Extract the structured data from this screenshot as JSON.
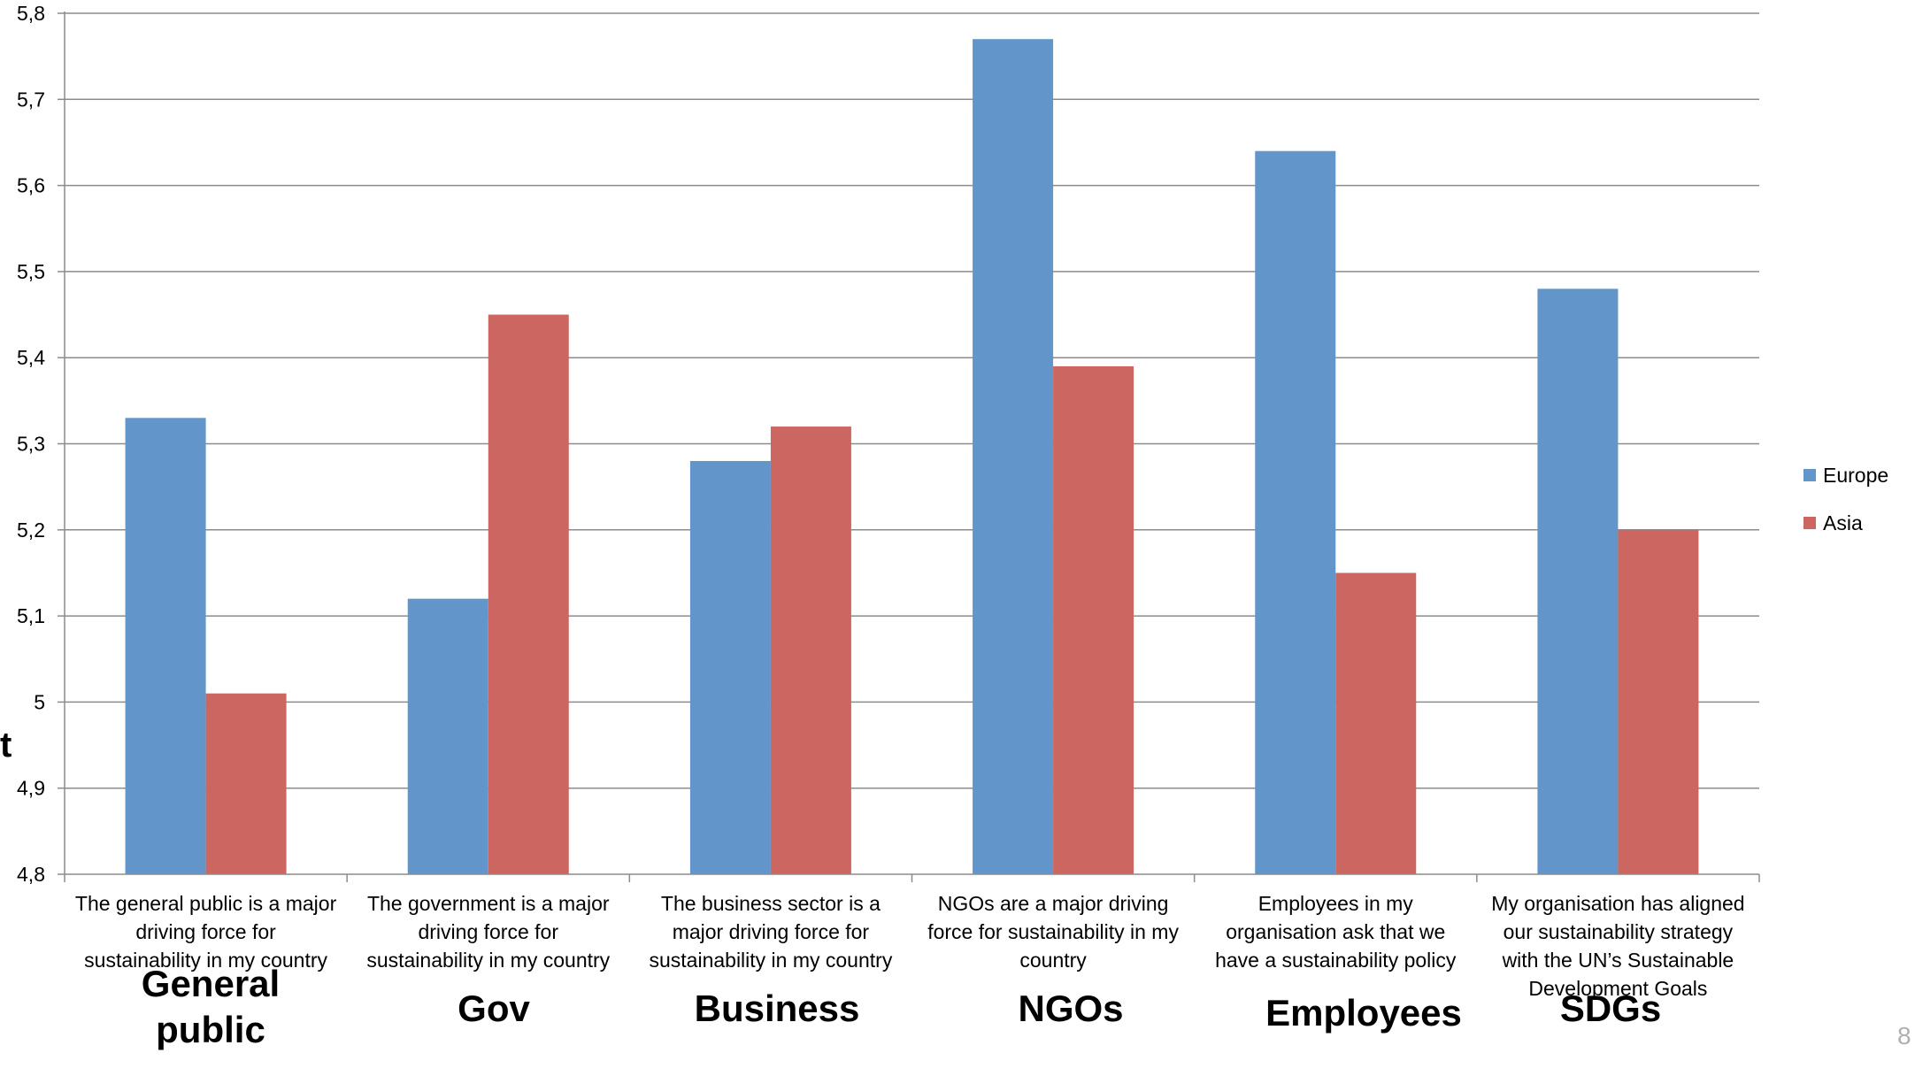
{
  "chart_data": {
    "type": "bar",
    "categories": [
      "The general public is a major\ndriving force for\nsustainability in my country",
      "The government is a major\ndriving force for\nsustainability in  my country",
      "The business sector is a\nmajor driving force for\nsustainability in my country",
      "NGOs are a major driving\nforce for sustainability in my\ncountry",
      "Employees in my\norganisation ask that we\nhave a sustainability policy",
      "My organisation has aligned\nour sustainability strategy\nwith the UN’s Sustainable\nDevelopment Goals"
    ],
    "group_labels": [
      "General\npublic",
      "Gov",
      "Business",
      "NGOs",
      "Employees",
      "SDGs"
    ],
    "series": [
      {
        "name": "Europe",
        "color": "#6295C9",
        "values": [
          5.33,
          5.12,
          5.28,
          5.77,
          5.64,
          5.48
        ]
      },
      {
        "name": "Asia",
        "color": "#CC6660",
        "values": [
          5.01,
          5.45,
          5.32,
          5.39,
          5.15,
          5.2
        ]
      }
    ],
    "yticks": [
      "4,8",
      "4,9",
      "5",
      "5,1",
      "5,2",
      "5,3",
      "5,4",
      "5,5",
      "5,6",
      "5,7",
      "5,8"
    ],
    "ylim": [
      4.8,
      5.8
    ],
    "grid": true,
    "legend_position": "right"
  },
  "edge_glyph": "t",
  "page_number": "8"
}
